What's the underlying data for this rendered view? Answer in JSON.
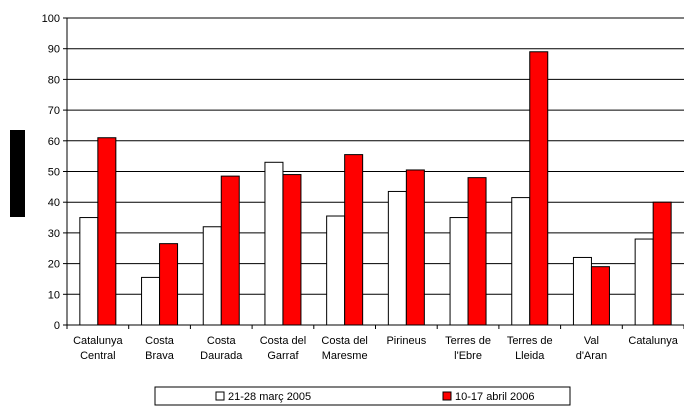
{
  "chart_data": {
    "type": "bar",
    "categories": [
      [
        "Catalunya",
        "Central"
      ],
      [
        "Costa",
        "Brava"
      ],
      [
        "Costa",
        "Daurada"
      ],
      [
        "Costa del",
        "Garraf"
      ],
      [
        "Costa del",
        "Maresme"
      ],
      [
        "Pirineus"
      ],
      [
        "Terres de",
        "l'Ebre"
      ],
      [
        "Terres de",
        "Lleida"
      ],
      [
        "Val",
        "d'Aran"
      ],
      [
        "Catalunya"
      ]
    ],
    "series": [
      {
        "name": "21-28 març 2005",
        "color": "#ffffff",
        "values": [
          35,
          15.5,
          32,
          53,
          35.5,
          43.5,
          35,
          41.5,
          22,
          28
        ]
      },
      {
        "name": "10-17 abril 2006",
        "color": "#ff0000",
        "values": [
          61,
          26.5,
          48.5,
          49,
          55.5,
          50.5,
          48,
          89,
          19,
          40
        ]
      }
    ],
    "ylim": [
      0,
      100
    ],
    "yticks": [
      0,
      10,
      20,
      30,
      40,
      50,
      60,
      70,
      80,
      90,
      100
    ],
    "grid": true,
    "legend_position": "bottom"
  }
}
